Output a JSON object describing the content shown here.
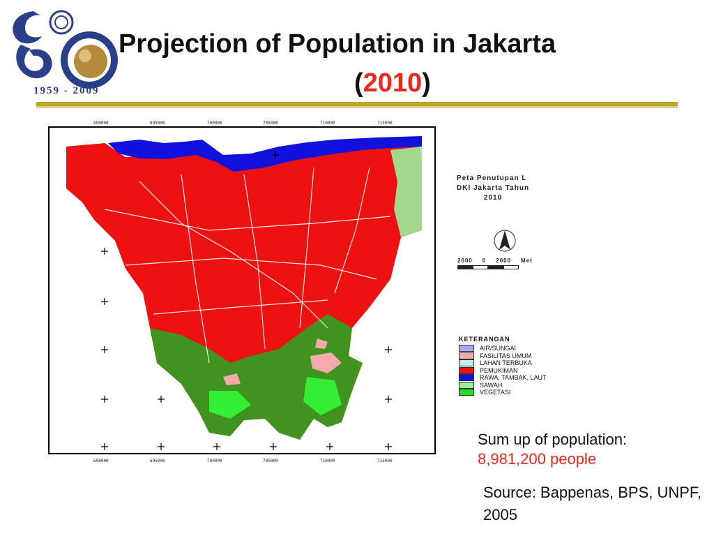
{
  "header": {
    "title": "Projection of Population in Jakarta",
    "subtitle_open": "(",
    "subtitle_year": "2010",
    "subtitle_close": ")"
  },
  "logo": {
    "years": "1959 - 2009"
  },
  "map": {
    "title_line1": "Peta Penutupan L",
    "title_line2": "DKI Jakarta Tahun",
    "title_line3": "2010",
    "scale_labels": [
      "2000",
      "0",
      "2000",
      "Met"
    ],
    "top_ticks": [
      "690000",
      "695000",
      "700000",
      "705000",
      "710000",
      "715000"
    ],
    "bottom_ticks": [
      "690000",
      "695000",
      "700000",
      "705000",
      "710000",
      "715000"
    ],
    "legend_title": "KETERANGAN",
    "legend": [
      {
        "label": "AIR/SUNGAI",
        "color": "#a8a8ee"
      },
      {
        "label": "FASILITAS UMUM",
        "color": "#f4aaaa"
      },
      {
        "label": "LAHAN TERBUKA",
        "color": "#bfeeee"
      },
      {
        "label": "PEMUKIMAN",
        "color": "#ee1111"
      },
      {
        "label": "RAWA, TAMBAK, LAUT",
        "color": "#1111dd"
      },
      {
        "label": "SAWAH",
        "color": "#99ee99"
      },
      {
        "label": "VEGETASI",
        "color": "#22dd22"
      }
    ]
  },
  "summary": {
    "label": "Sum up of population:",
    "value": "8,981,200 people"
  },
  "source": {
    "text": "Source: Bappenas, BPS, UNPF, 2005"
  },
  "colors": {
    "accent_red": "#e8291c",
    "rule": "#b9a72a",
    "residential": "#ee1111",
    "sea": "#1111dd",
    "vegetation": "#22dd22"
  }
}
